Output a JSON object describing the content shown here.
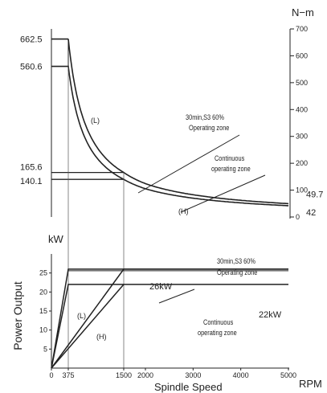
{
  "chart_data": [
    {
      "type": "line",
      "unit_label": "N−m",
      "xlim": [
        0,
        5000
      ],
      "right_ylim": [
        0,
        700
      ],
      "right_ticks": [
        "0",
        "100",
        "200",
        "300",
        "400",
        "500",
        "600",
        "700"
      ],
      "left_markers": [
        {
          "label": "662.5",
          "value": 662.5
        },
        {
          "label": "560.6",
          "value": 560.6
        },
        {
          "label": "165.6",
          "value": 165.6
        },
        {
          "label": "140.1",
          "value": 140.1
        }
      ],
      "end_labels": [
        {
          "label": "49.7",
          "value": 49.7
        },
        {
          "label": "42",
          "value": 42
        }
      ],
      "series": [
        {
          "name": "(L)",
          "x": [
            0,
            375,
            500,
            750,
            1000,
            1500,
            2000,
            3000,
            4000,
            5000
          ],
          "y": [
            662.5,
            662.5,
            497,
            331,
            248,
            165.6,
            124,
            82.8,
            62.1,
            49.7
          ]
        },
        {
          "name": "(H)",
          "x": [
            0,
            375,
            500,
            750,
            1000,
            1500,
            2000,
            3000,
            4000,
            5000
          ],
          "y": [
            560.6,
            560.6,
            420,
            280,
            210,
            140.1,
            105,
            70,
            52.5,
            42
          ]
        },
        {
          "name": "",
          "x": [
            0,
            1500
          ],
          "y": [
            165.6,
            165.6
          ]
        },
        {
          "name": "",
          "x": [
            0,
            1500
          ],
          "y": [
            140.1,
            140.1
          ]
        }
      ],
      "annotations": [
        {
          "label": "(L)",
          "line1": "",
          "line2": ""
        },
        {
          "label": "(H)",
          "line1": "",
          "line2": ""
        },
        {
          "label": "",
          "line1": "30min,S3  60%",
          "line2": "Operating  zone"
        },
        {
          "label": "",
          "line1": "Continuous",
          "line2": "operating  zone"
        }
      ]
    },
    {
      "type": "line",
      "ylabel": "Power Output",
      "unit_label": "kW",
      "xlabel": "Spindle Speed",
      "x_unit": "RPM",
      "xlim": [
        0,
        5000
      ],
      "ylim": [
        0,
        30
      ],
      "x_ticks": [
        "0",
        "375",
        "1500",
        "2000",
        "3000",
        "4000",
        "5000"
      ],
      "y_ticks": [
        "5",
        "10",
        "15",
        "20",
        "25"
      ],
      "series": [
        {
          "name": "(L)",
          "x": [
            0,
            375,
            5000
          ],
          "y": [
            0,
            26,
            26
          ]
        },
        {
          "name": "(H)",
          "x": [
            0,
            1500,
            5000
          ],
          "y": [
            0,
            26,
            26
          ]
        },
        {
          "name": "",
          "x": [
            0,
            375,
            5000
          ],
          "y": [
            0,
            22,
            22
          ]
        },
        {
          "name": "",
          "x": [
            0,
            1500
          ],
          "y": [
            0,
            22
          ]
        }
      ],
      "value_labels": [
        "26kW",
        "22kW"
      ],
      "annotations": [
        {
          "label": "(L)",
          "line1": "",
          "line2": ""
        },
        {
          "label": "(H)",
          "line1": "",
          "line2": ""
        },
        {
          "label": "",
          "line1": "30min,S3  60%",
          "line2": "Operating  zone"
        },
        {
          "label": "",
          "line1": "Continuous",
          "line2": "operating  zone"
        }
      ]
    }
  ]
}
